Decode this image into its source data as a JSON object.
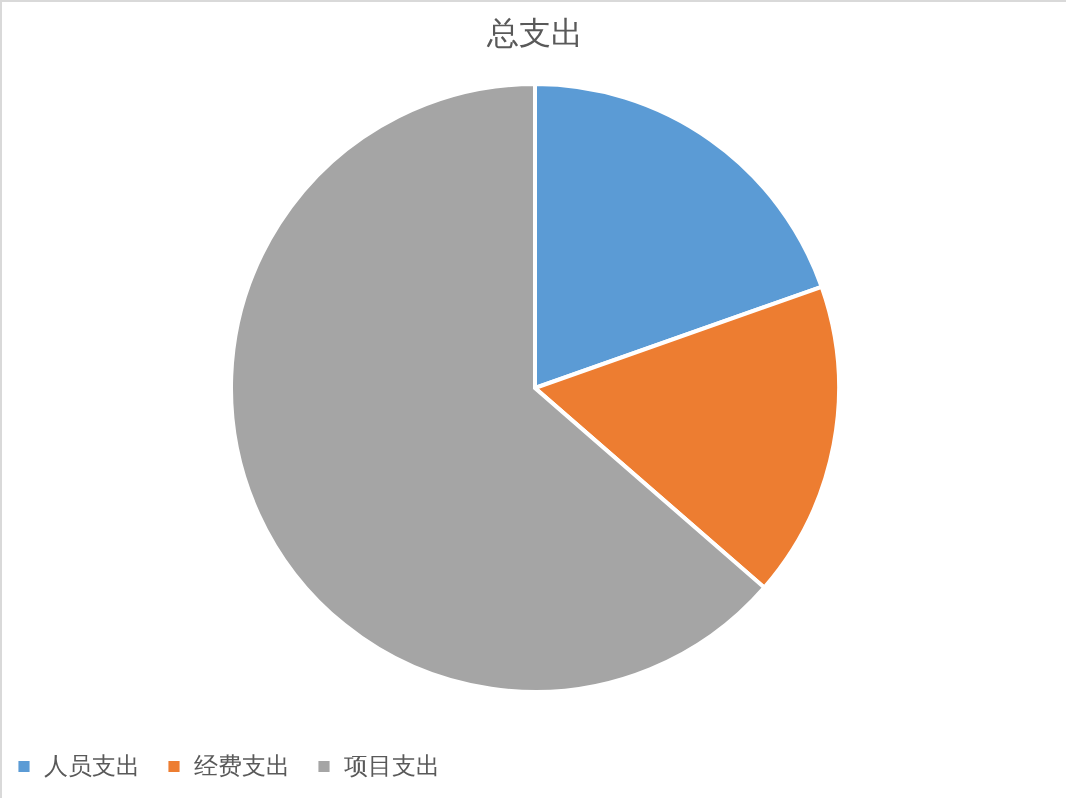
{
  "chart_data": {
    "type": "pie",
    "title": "总支出",
    "categories": [
      "人员支出",
      "经费支出",
      "项目支出"
    ],
    "values": [
      19.6,
      16.8,
      63.6
    ],
    "colors": [
      "#5b9bd5",
      "#ed7d31",
      "#a5a5a5"
    ],
    "legend": "bottom"
  }
}
